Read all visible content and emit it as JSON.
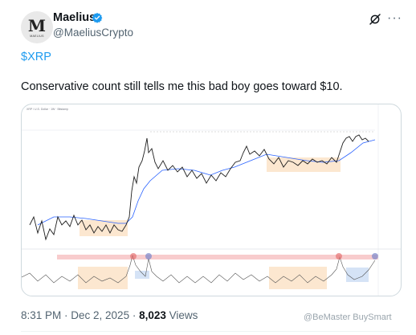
{
  "author": {
    "name": "Maelius",
    "handle": "@MaeliusCrypto",
    "avatar_letter": "M",
    "avatar_sub": "MAELIUS"
  },
  "tweet": {
    "cashtag": "$XRP",
    "text": "Conservative count still tells me this bad boy goes toward $10."
  },
  "footer": {
    "time": "8:31 PM · Dec 2, 2025 · ",
    "views_count": "8,023",
    "views_label": " Views"
  },
  "watermark": "@BeMaster BuySmart",
  "media": {
    "header_text": "XRP / U.S. Dollar · 1W · Bitstamp",
    "colors": {
      "price": "#1e1e1e",
      "ma": "#2962ff",
      "orange_zone": "#fbe3c8",
      "blue_zone": "#d5e3f6",
      "pink_band": "#f7c6c8",
      "osc": "#555555"
    }
  },
  "colors": {
    "accent": "#1d9bf0",
    "badge": "#1d9bf0",
    "muted": "#536471"
  }
}
